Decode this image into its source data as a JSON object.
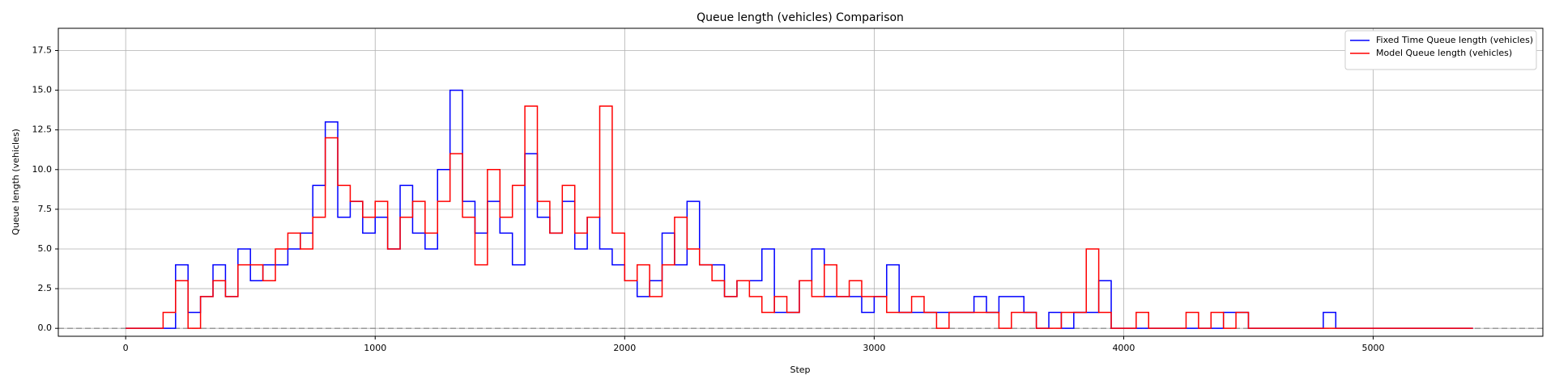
{
  "chart_data": {
    "type": "step-line",
    "title": "Queue length (vehicles) Comparison",
    "x_label": "Step",
    "y_label": "Queue length (vehicles)",
    "x": [
      0,
      50,
      100,
      150,
      200,
      250,
      300,
      350,
      400,
      450,
      500,
      550,
      600,
      650,
      700,
      750,
      800,
      850,
      900,
      950,
      1000,
      1050,
      1100,
      1150,
      1200,
      1250,
      1300,
      1350,
      1400,
      1450,
      1500,
      1550,
      1600,
      1650,
      1700,
      1750,
      1800,
      1850,
      1900,
      1950,
      2000,
      2050,
      2100,
      2150,
      2200,
      2250,
      2300,
      2350,
      2400,
      2450,
      2500,
      2550,
      2600,
      2650,
      2700,
      2750,
      2800,
      2850,
      2900,
      2950,
      3000,
      3050,
      3100,
      3150,
      3200,
      3250,
      3300,
      3350,
      3400,
      3450,
      3500,
      3550,
      3600,
      3650,
      3700,
      3750,
      3800,
      3850,
      3900,
      3950,
      4000,
      4050,
      4100,
      4150,
      4200,
      4250,
      4300,
      4350,
      4400,
      4450,
      4500,
      4550,
      4600,
      4650,
      4700,
      4750,
      4800,
      4850,
      4900,
      4950,
      5000,
      5050,
      5100,
      5150,
      5200,
      5250,
      5300,
      5350,
      5400
    ],
    "series": [
      {
        "name": "Fixed Time Queue length (vehicles)",
        "color": "#0000ff",
        "values": [
          0,
          0,
          0,
          0,
          4,
          1,
          2,
          4,
          2,
          5,
          3,
          4,
          4,
          5,
          6,
          9,
          13,
          7,
          8,
          6,
          7,
          5,
          9,
          6,
          5,
          10,
          15,
          8,
          6,
          8,
          6,
          4,
          11,
          7,
          6,
          8,
          5,
          7,
          5,
          4,
          3,
          2,
          3,
          6,
          4,
          8,
          4,
          4,
          2,
          3,
          3,
          5,
          1,
          1,
          3,
          5,
          2,
          2,
          2,
          1,
          2,
          4,
          1,
          1,
          1,
          1,
          1,
          1,
          2,
          1,
          2,
          2,
          1,
          0,
          1,
          0,
          1,
          1,
          3,
          0,
          0,
          0,
          0,
          0,
          0,
          0,
          0,
          0,
          1,
          1,
          0,
          0,
          0,
          0,
          0,
          0,
          1,
          0,
          0,
          0,
          0,
          0,
          0,
          0,
          0,
          0,
          0,
          0,
          0
        ]
      },
      {
        "name": "Model Queue length (vehicles)",
        "color": "#ff0000",
        "values": [
          0,
          0,
          0,
          1,
          3,
          0,
          2,
          3,
          2,
          4,
          4,
          3,
          5,
          6,
          5,
          7,
          12,
          9,
          8,
          7,
          8,
          5,
          7,
          8,
          6,
          8,
          11,
          7,
          4,
          10,
          7,
          9,
          14,
          8,
          6,
          9,
          6,
          7,
          14,
          6,
          3,
          4,
          2,
          4,
          7,
          5,
          4,
          3,
          2,
          3,
          2,
          1,
          2,
          1,
          3,
          2,
          4,
          2,
          3,
          2,
          2,
          1,
          1,
          2,
          1,
          0,
          1,
          1,
          1,
          1,
          0,
          1,
          1,
          0,
          0,
          1,
          1,
          5,
          1,
          0,
          0,
          1,
          0,
          0,
          0,
          1,
          0,
          1,
          0,
          1,
          0,
          0,
          0,
          0,
          0,
          0,
          0,
          0,
          0,
          0,
          0,
          0,
          0,
          0,
          0,
          0,
          0,
          0,
          0
        ]
      }
    ],
    "reference_line": 0,
    "xlim": [
      -270,
      5680
    ],
    "ylim": [
      -0.5,
      18.9
    ],
    "xticks": [
      0,
      1000,
      2000,
      3000,
      4000,
      5000
    ],
    "yticks": [
      {
        "value": 0,
        "label": "0.0"
      },
      2.5,
      {
        "value": 5,
        "label": "5.0"
      },
      7.5,
      {
        "value": 10,
        "label": "10.0"
      },
      12.5,
      {
        "value": 15,
        "label": "15.0"
      },
      17.5
    ],
    "grid": true,
    "legend": "upper-right"
  }
}
